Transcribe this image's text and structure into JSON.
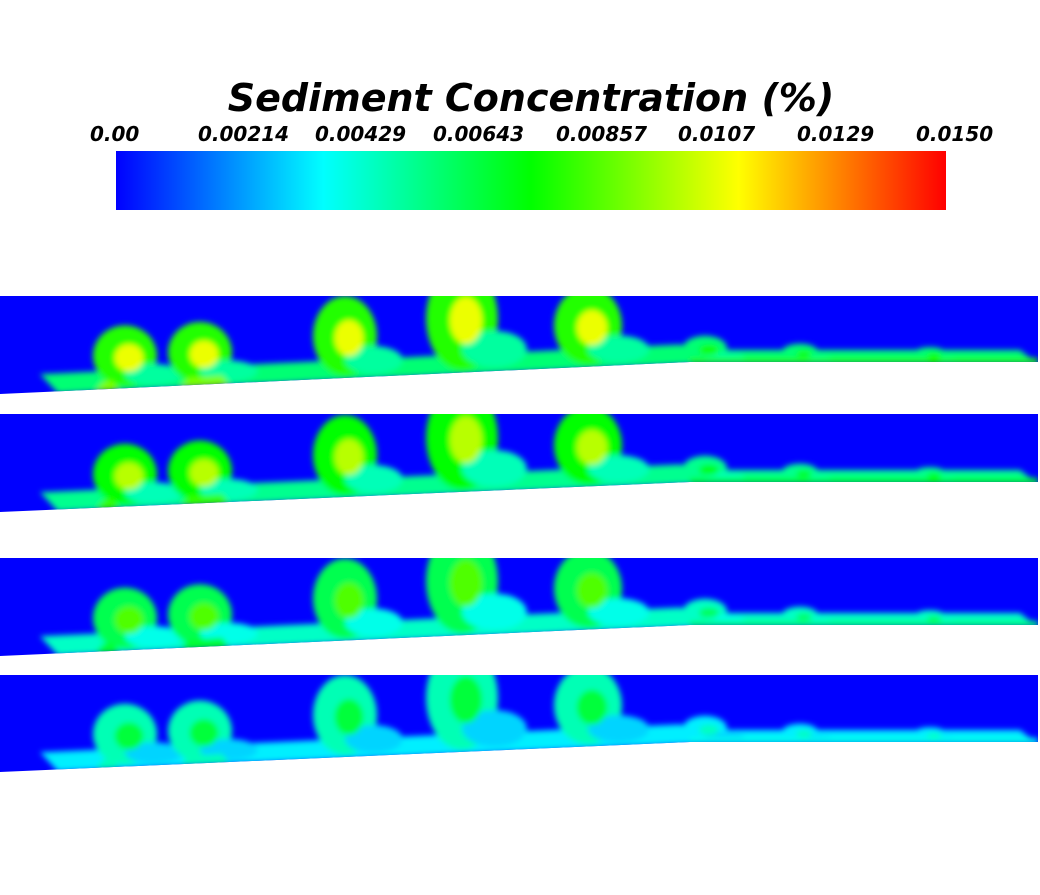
{
  "chart_data": {
    "type": "heatmap",
    "title": "Sediment Concentration (%)",
    "colorbar": {
      "min": 0.0,
      "max": 0.015,
      "tick_labels": [
        "0.00",
        "0.00214",
        "0.00429",
        "0.00643",
        "0.00857",
        "0.0107",
        "0.0129",
        "0.0150"
      ],
      "tick_values": [
        0.0,
        0.00214,
        0.00429,
        0.00643,
        0.00857,
        0.0107,
        0.0129,
        0.015
      ],
      "colors": [
        "#0000ff",
        "#00ffff",
        "#00ff00",
        "#ffff00",
        "#ff0000"
      ]
    },
    "panels": [
      {
        "peak_level": 0.86,
        "bed_level": 0.62
      },
      {
        "peak_level": 0.8,
        "bed_level": 0.55
      },
      {
        "peak_level": 0.68,
        "bed_level": 0.45
      },
      {
        "peak_level": 0.52,
        "bed_level": 0.32
      }
    ]
  }
}
